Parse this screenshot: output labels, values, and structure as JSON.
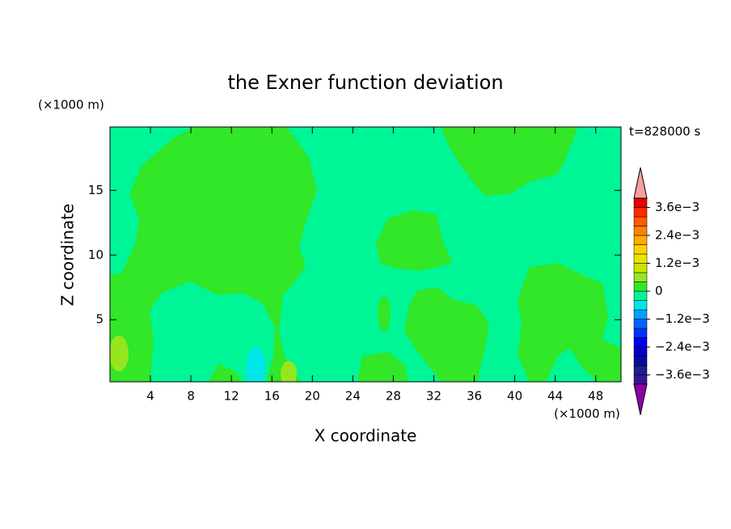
{
  "chart_data": {
    "type": "contour",
    "title": "the Exner function deviation",
    "x_label": "X coordinate",
    "y_label": "Z coordinate",
    "x_unit": "(×1000 m)",
    "y_unit": "(×1000 m)",
    "time_label": "t=828000 s",
    "xlim": [
      0,
      50.5
    ],
    "ylim": [
      0.2,
      19.9
    ],
    "xticks": [
      4,
      8,
      12,
      16,
      20,
      24,
      28,
      32,
      36,
      40,
      44,
      48
    ],
    "yticks": [
      5,
      10,
      15
    ],
    "levels": [
      -0.004,
      -0.0036,
      -0.0032,
      -0.0028,
      -0.0024,
      -0.002,
      -0.0016,
      -0.0012,
      -0.0008,
      -0.0004,
      0,
      0.0004,
      0.0008,
      0.0012,
      0.0016,
      0.002,
      0.0024,
      0.0028,
      0.0032,
      0.0036,
      0.004
    ],
    "colors": [
      "#3c1496",
      "#1e1e8c",
      "#0a0aa0",
      "#0000c8",
      "#0000f0",
      "#0032ff",
      "#0064ff",
      "#00a0ff",
      "#00e6e6",
      "#00f596",
      "#32e628",
      "#96e61e",
      "#c8e600",
      "#e6e600",
      "#ffd200",
      "#ffaa00",
      "#ff8200",
      "#ff5a00",
      "#ff2800",
      "#e60000"
    ],
    "over_color": "#f4a0a0",
    "under_color": "#8c00aa",
    "clim": [
      -0.004,
      0.004
    ],
    "cticks": [
      {
        "value": -0.0036,
        "label": "−3.6e−3"
      },
      {
        "value": -0.0024,
        "label": "−2.4e−3"
      },
      {
        "value": -0.0012,
        "label": "−1.2e−3"
      },
      0,
      {
        "value": 0.0012,
        "label": "1.2e−3"
      },
      {
        "value": 0.0024,
        "label": "2.4e−3"
      },
      {
        "value": 0.0036,
        "label": "3.6e−3"
      }
    ]
  }
}
